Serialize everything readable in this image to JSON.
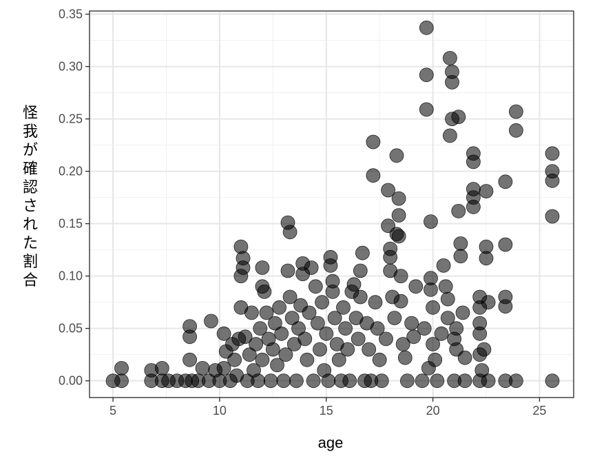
{
  "chart_data": {
    "type": "scatter",
    "xlabel": "age",
    "ylabel": "怪我が確認された割合",
    "xlim": [
      3.9,
      26.6
    ],
    "ylim": [
      -0.016,
      0.353
    ],
    "x_ticks": [
      5,
      10,
      15,
      20,
      25
    ],
    "x_tick_labels": [
      "5",
      "10",
      "15",
      "20",
      "25"
    ],
    "y_ticks": [
      0.0,
      0.05,
      0.1,
      0.15,
      0.2,
      0.25,
      0.3,
      0.35
    ],
    "y_tick_labels": [
      "0.00",
      "0.05",
      "0.10",
      "0.15",
      "0.20",
      "0.25",
      "0.30",
      "0.35"
    ],
    "grid": true,
    "theme": "black-and-white",
    "point_color": "#000000",
    "point_opacity": 0.55,
    "points": [
      [
        5.0,
        0.0
      ],
      [
        5.4,
        0.0
      ],
      [
        5.4,
        0.012
      ],
      [
        6.8,
        0.0
      ],
      [
        6.8,
        0.01
      ],
      [
        7.3,
        0.0
      ],
      [
        7.3,
        0.012
      ],
      [
        7.6,
        0.0
      ],
      [
        8.0,
        0.0
      ],
      [
        8.4,
        0.0
      ],
      [
        8.6,
        0.052
      ],
      [
        8.6,
        0.042
      ],
      [
        8.6,
        0.02
      ],
      [
        8.7,
        0.0
      ],
      [
        9.0,
        0.0
      ],
      [
        9.2,
        0.012
      ],
      [
        9.5,
        0.0
      ],
      [
        9.6,
        0.057
      ],
      [
        9.8,
        0.01
      ],
      [
        10.0,
        0.0
      ],
      [
        10.2,
        0.012
      ],
      [
        10.2,
        0.045
      ],
      [
        10.3,
        0.028
      ],
      [
        10.5,
        0.0
      ],
      [
        10.6,
        0.035
      ],
      [
        10.7,
        0.02
      ],
      [
        10.8,
        0.005
      ],
      [
        10.9,
        0.04
      ],
      [
        11.0,
        0.128
      ],
      [
        11.0,
        0.1
      ],
      [
        11.1,
        0.117
      ],
      [
        11.1,
        0.108
      ],
      [
        11.0,
        0.07
      ],
      [
        11.2,
        0.042
      ],
      [
        11.3,
        0.0
      ],
      [
        11.4,
        0.025
      ],
      [
        11.5,
        0.065
      ],
      [
        11.6,
        0.01
      ],
      [
        11.7,
        0.035
      ],
      [
        11.8,
        0.0
      ],
      [
        11.9,
        0.05
      ],
      [
        12.0,
        0.108
      ],
      [
        12.0,
        0.09
      ],
      [
        12.0,
        0.02
      ],
      [
        12.1,
        0.085
      ],
      [
        12.2,
        0.065
      ],
      [
        12.3,
        0.04
      ],
      [
        12.4,
        0.0
      ],
      [
        12.5,
        0.03
      ],
      [
        12.6,
        0.055
      ],
      [
        12.7,
        0.015
      ],
      [
        12.8,
        0.07
      ],
      [
        12.9,
        0.045
      ],
      [
        13.0,
        0.0
      ],
      [
        13.1,
        0.025
      ],
      [
        13.2,
        0.105
      ],
      [
        13.2,
        0.151
      ],
      [
        13.3,
        0.142
      ],
      [
        13.3,
        0.08
      ],
      [
        13.4,
        0.06
      ],
      [
        13.5,
        0.035
      ],
      [
        13.6,
        0.0
      ],
      [
        13.7,
        0.05
      ],
      [
        13.8,
        0.072
      ],
      [
        13.9,
        0.112
      ],
      [
        13.9,
        0.102
      ],
      [
        14.0,
        0.04
      ],
      [
        14.1,
        0.02
      ],
      [
        14.2,
        0.065
      ],
      [
        14.3,
        0.108
      ],
      [
        14.4,
        0.0
      ],
      [
        14.5,
        0.09
      ],
      [
        14.6,
        0.055
      ],
      [
        14.7,
        0.03
      ],
      [
        14.8,
        0.075
      ],
      [
        14.9,
        0.01
      ],
      [
        15.0,
        0.045
      ],
      [
        15.1,
        0.0
      ],
      [
        15.2,
        0.118
      ],
      [
        15.2,
        0.11
      ],
      [
        15.3,
        0.095
      ],
      [
        15.3,
        0.085
      ],
      [
        15.4,
        0.06
      ],
      [
        15.5,
        0.035
      ],
      [
        15.6,
        0.02
      ],
      [
        15.7,
        0.0
      ],
      [
        15.8,
        0.07
      ],
      [
        15.9,
        0.05
      ],
      [
        16.0,
        0.03
      ],
      [
        16.1,
        0.0
      ],
      [
        16.2,
        0.085
      ],
      [
        16.3,
        0.092
      ],
      [
        16.4,
        0.06
      ],
      [
        16.5,
        0.04
      ],
      [
        16.6,
        0.08
      ],
      [
        16.6,
        0.105
      ],
      [
        16.7,
        0.122
      ],
      [
        16.8,
        0.0
      ],
      [
        16.9,
        0.055
      ],
      [
        17.0,
        0.03
      ],
      [
        17.1,
        0.0
      ],
      [
        17.2,
        0.228
      ],
      [
        17.2,
        0.196
      ],
      [
        17.3,
        0.075
      ],
      [
        17.4,
        0.05
      ],
      [
        17.5,
        0.02
      ],
      [
        17.6,
        0.0
      ],
      [
        17.8,
        0.04
      ],
      [
        17.9,
        0.182
      ],
      [
        17.9,
        0.148
      ],
      [
        18.0,
        0.126
      ],
      [
        18.0,
        0.118
      ],
      [
        18.0,
        0.105
      ],
      [
        18.1,
        0.08
      ],
      [
        18.2,
        0.06
      ],
      [
        18.3,
        0.215
      ],
      [
        18.3,
        0.14
      ],
      [
        18.4,
        0.174
      ],
      [
        18.4,
        0.158
      ],
      [
        18.4,
        0.138
      ],
      [
        18.5,
        0.1
      ],
      [
        18.5,
        0.076
      ],
      [
        18.6,
        0.035
      ],
      [
        18.7,
        0.022
      ],
      [
        18.8,
        0.0
      ],
      [
        19.0,
        0.055
      ],
      [
        19.1,
        0.042
      ],
      [
        19.2,
        0.09
      ],
      [
        19.5,
        0.0
      ],
      [
        19.6,
        0.05
      ],
      [
        19.7,
        0.337
      ],
      [
        19.7,
        0.292
      ],
      [
        19.7,
        0.259
      ],
      [
        19.8,
        0.012
      ],
      [
        19.9,
        0.152
      ],
      [
        19.9,
        0.098
      ],
      [
        19.9,
        0.087
      ],
      [
        20.0,
        0.07
      ],
      [
        20.0,
        0.035
      ],
      [
        20.1,
        0.02
      ],
      [
        20.2,
        0.0
      ],
      [
        20.4,
        0.045
      ],
      [
        20.5,
        0.11
      ],
      [
        20.6,
        0.09
      ],
      [
        20.7,
        0.078
      ],
      [
        20.7,
        0.06
      ],
      [
        20.8,
        0.308
      ],
      [
        20.8,
        0.234
      ],
      [
        20.9,
        0.295
      ],
      [
        20.9,
        0.285
      ],
      [
        20.9,
        0.25
      ],
      [
        21.0,
        0.04
      ],
      [
        21.0,
        0.0
      ],
      [
        21.1,
        0.05
      ],
      [
        21.1,
        0.03
      ],
      [
        21.2,
        0.252
      ],
      [
        21.2,
        0.162
      ],
      [
        21.3,
        0.131
      ],
      [
        21.3,
        0.119
      ],
      [
        21.4,
        0.065
      ],
      [
        21.5,
        0.022
      ],
      [
        21.5,
        0.0
      ],
      [
        21.9,
        0.217
      ],
      [
        21.9,
        0.209
      ],
      [
        21.9,
        0.183
      ],
      [
        21.9,
        0.175
      ],
      [
        21.9,
        0.166
      ],
      [
        22.2,
        0.08
      ],
      [
        22.2,
        0.07
      ],
      [
        22.2,
        0.055
      ],
      [
        22.2,
        0.045
      ],
      [
        22.2,
        0.025
      ],
      [
        22.2,
        0.0
      ],
      [
        22.3,
        0.01
      ],
      [
        22.4,
        0.03
      ],
      [
        22.5,
        0.181
      ],
      [
        22.5,
        0.128
      ],
      [
        22.5,
        0.117
      ],
      [
        22.6,
        0.075
      ],
      [
        22.6,
        0.0
      ],
      [
        23.4,
        0.19
      ],
      [
        23.4,
        0.13
      ],
      [
        23.4,
        0.08
      ],
      [
        23.4,
        0.071
      ],
      [
        23.4,
        0.0
      ],
      [
        23.9,
        0.257
      ],
      [
        23.9,
        0.239
      ],
      [
        23.9,
        0.0
      ],
      [
        25.6,
        0.217
      ],
      [
        25.6,
        0.2
      ],
      [
        25.6,
        0.191
      ],
      [
        25.6,
        0.157
      ],
      [
        25.6,
        0.0
      ]
    ]
  }
}
